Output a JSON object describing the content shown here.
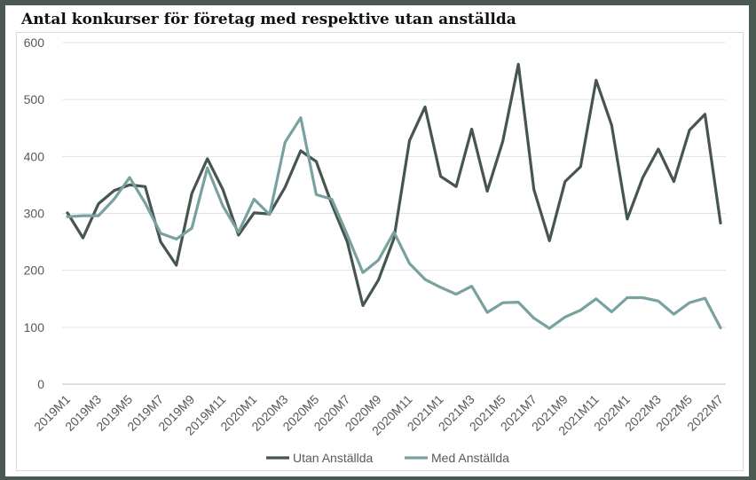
{
  "chart_data": {
    "type": "line",
    "title": "Antal konkurser för företag med respektive utan anställda",
    "xlabel": "",
    "ylabel": "",
    "ylim": [
      0,
      600
    ],
    "yticks": [
      0,
      100,
      200,
      300,
      400,
      500,
      600
    ],
    "grid": true,
    "legend_position": "bottom",
    "x": [
      "2019M1",
      "2019M2",
      "2019M3",
      "2019M4",
      "2019M5",
      "2019M6",
      "2019M7",
      "2019M8",
      "2019M9",
      "2019M10",
      "2019M11",
      "2019M12",
      "2020M1",
      "2020M2",
      "2020M3",
      "2020M4",
      "2020M5",
      "2020M6",
      "2020M7",
      "2020M8",
      "2020M9",
      "2020M10",
      "2020M11",
      "2020M12",
      "2021M1",
      "2021M2",
      "2021M3",
      "2021M4",
      "2021M5",
      "2021M6",
      "2021M7",
      "2021M8",
      "2021M9",
      "2021M10",
      "2021M11",
      "2021M12",
      "2022M1",
      "2022M2",
      "2022M3",
      "2022M4",
      "2022M5",
      "2022M6",
      "2022M7"
    ],
    "xtick_labels": [
      "2019M1",
      "2019M3",
      "2019M5",
      "2019M7",
      "2019M9",
      "2019M11",
      "2020M1",
      "2020M3",
      "2020M5",
      "2020M7",
      "2020M9",
      "2020M11",
      "2021M1",
      "2021M3",
      "2021M5",
      "2021M7",
      "2021M9",
      "2021M11",
      "2022M1",
      "2022M3",
      "2022M5",
      "2022M7"
    ],
    "series": [
      {
        "name": "Utan Anställda",
        "color": "#46554e",
        "values": [
          301,
          257,
          317,
          340,
          350,
          347,
          250,
          209,
          335,
          396,
          342,
          262,
          301,
          299,
          346,
          410,
          391,
          316,
          250,
          138,
          183,
          256,
          428,
          487,
          365,
          347,
          448,
          339,
          427,
          562,
          342,
          252,
          356,
          382,
          534,
          455,
          290,
          363,
          413,
          356,
          446,
          474,
          283
        ]
      },
      {
        "name": "Med Anställda",
        "color": "#78a19f",
        "values": [
          294,
          296,
          296,
          325,
          363,
          318,
          265,
          255,
          274,
          380,
          313,
          267,
          325,
          298,
          425,
          468,
          333,
          325,
          262,
          196,
          218,
          267,
          212,
          184,
          170,
          158,
          172,
          126,
          143,
          144,
          116,
          98,
          118,
          130,
          150,
          127,
          152,
          152,
          146,
          123,
          143,
          151,
          99
        ]
      }
    ]
  }
}
